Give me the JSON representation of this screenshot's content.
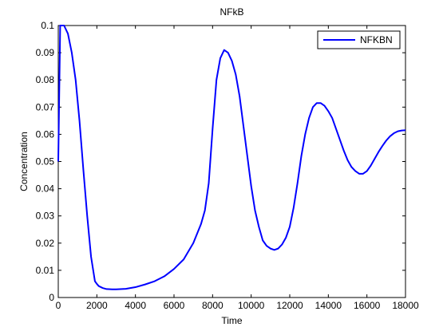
{
  "chart_data": {
    "type": "line",
    "title": "NFkB",
    "xlabel": "Time",
    "ylabel": "Concentration",
    "xlim": [
      0,
      18000
    ],
    "ylim": [
      0,
      0.1
    ],
    "xticks": [
      0,
      2000,
      4000,
      6000,
      8000,
      10000,
      12000,
      14000,
      16000,
      18000
    ],
    "yticks": [
      0,
      0.01,
      0.02,
      0.03,
      0.04,
      0.05,
      0.06,
      0.07,
      0.08,
      0.09,
      0.1
    ],
    "xtick_labels": [
      "0",
      "2000",
      "4000",
      "6000",
      "8000",
      "10000",
      "12000",
      "14000",
      "16000",
      "18000"
    ],
    "ytick_labels": [
      "0",
      "0.01",
      "0.02",
      "0.03",
      "0.04",
      "0.05",
      "0.06",
      "0.07",
      "0.08",
      "0.09",
      "0.1"
    ],
    "grid": false,
    "legend_position": "top-right",
    "series": [
      {
        "name": "NFKBN",
        "color": "#0000ff",
        "x": [
          0,
          100,
          300,
          500,
          700,
          900,
          1100,
          1300,
          1500,
          1700,
          1900,
          2000,
          2100,
          2300,
          2500,
          2800,
          3000,
          3500,
          4000,
          4500,
          5000,
          5500,
          6000,
          6500,
          7000,
          7400,
          7600,
          7800,
          8000,
          8200,
          8400,
          8600,
          8800,
          9000,
          9200,
          9400,
          9600,
          9800,
          10000,
          10200,
          10400,
          10600,
          10800,
          11000,
          11200,
          11400,
          11600,
          11800,
          12000,
          12200,
          12400,
          12600,
          12800,
          13000,
          13200,
          13400,
          13600,
          13800,
          14000,
          14200,
          14400,
          14600,
          14800,
          15000,
          15200,
          15400,
          15600,
          15800,
          16000,
          16200,
          16400,
          16600,
          16800,
          17000,
          17200,
          17400,
          17600,
          17800,
          18000
        ],
        "y": [
          0.05,
          0.1,
          0.1,
          0.097,
          0.09,
          0.08,
          0.065,
          0.047,
          0.03,
          0.015,
          0.006,
          0.005,
          0.0042,
          0.0035,
          0.0031,
          0.003,
          0.003,
          0.0032,
          0.0038,
          0.0048,
          0.006,
          0.0078,
          0.0105,
          0.014,
          0.02,
          0.027,
          0.032,
          0.042,
          0.062,
          0.08,
          0.088,
          0.091,
          0.09,
          0.087,
          0.082,
          0.074,
          0.063,
          0.052,
          0.041,
          0.032,
          0.026,
          0.021,
          0.019,
          0.018,
          0.0175,
          0.018,
          0.0195,
          0.022,
          0.026,
          0.033,
          0.042,
          0.052,
          0.06,
          0.066,
          0.07,
          0.0715,
          0.0715,
          0.0705,
          0.0685,
          0.066,
          0.062,
          0.058,
          0.054,
          0.0505,
          0.048,
          0.0465,
          0.0455,
          0.0455,
          0.0465,
          0.0485,
          0.051,
          0.0535,
          0.0557,
          0.0577,
          0.0593,
          0.0604,
          0.0611,
          0.0614,
          0.0615
        ]
      }
    ]
  }
}
